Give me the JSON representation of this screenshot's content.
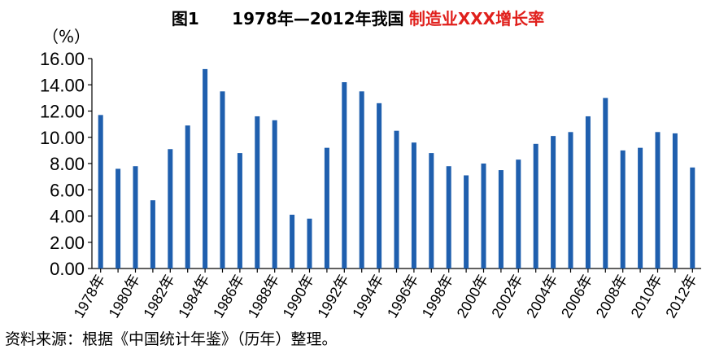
{
  "chart_data": {
    "type": "bar",
    "title": {
      "prefix": "图1",
      "year_range": "1978年—2012年我国",
      "highlight": "制造业XXX增长率"
    },
    "ylabel": "（%）",
    "ylim": [
      0,
      16
    ],
    "y_ticks": [
      "0.00",
      "2.00",
      "4.00",
      "6.00",
      "8.00",
      "10.00",
      "12.00",
      "14.00",
      "16.00"
    ],
    "categories": [
      "1978年",
      "1979年",
      "1980年",
      "1981年",
      "1982年",
      "1983年",
      "1984年",
      "1985年",
      "1986年",
      "1987年",
      "1988年",
      "1989年",
      "1990年",
      "1991年",
      "1992年",
      "1993年",
      "1994年",
      "1995年",
      "1996年",
      "1997年",
      "1998年",
      "1999年",
      "2000年",
      "2001年",
      "2002年",
      "2003年",
      "2004年",
      "2005年",
      "2006年",
      "2007年",
      "2008年",
      "2009年",
      "2010年",
      "2011年",
      "2012年"
    ],
    "x_tick_labels": [
      "1978年",
      "1980年",
      "1982年",
      "1984年",
      "1986年",
      "1988年",
      "1990年",
      "1992年",
      "1994年",
      "1996年",
      "1998年",
      "2000年",
      "2002年",
      "2004年",
      "2006年",
      "2008年",
      "2010年",
      "2012年"
    ],
    "values": [
      11.7,
      7.6,
      7.8,
      5.2,
      9.1,
      10.9,
      15.2,
      13.5,
      8.8,
      11.6,
      11.3,
      4.1,
      3.8,
      9.2,
      14.2,
      13.5,
      12.6,
      10.5,
      9.6,
      8.8,
      7.8,
      7.1,
      8.0,
      7.5,
      8.3,
      9.5,
      10.1,
      10.4,
      11.6,
      13.0,
      9.0,
      9.2,
      10.4,
      10.3,
      7.7
    ],
    "bar_color": "#1f5fae",
    "grid": false,
    "legend": "none"
  },
  "source_note": "资料来源：根据《中国统计年鉴》（历年）整理。"
}
